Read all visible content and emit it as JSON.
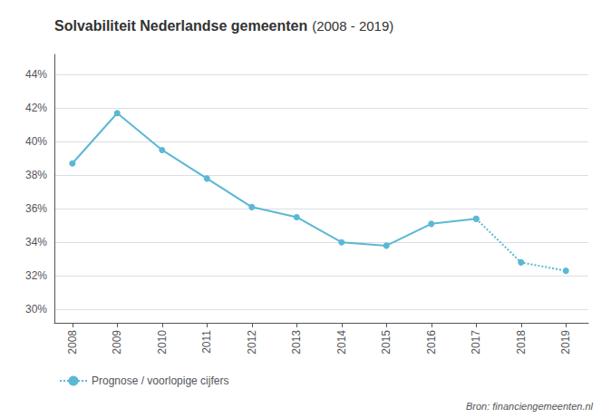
{
  "chart_data": {
    "type": "line",
    "title": "Solvabiliteit Nederlandse gemeenten",
    "subtitle": "(2008 - 2019)",
    "x": [
      2008,
      2009,
      2010,
      2011,
      2012,
      2013,
      2014,
      2015,
      2016,
      2017,
      2018,
      2019
    ],
    "series": [
      {
        "color": "#5BB8D4",
        "line_style": "solid",
        "marker": "circle",
        "values": [
          38.7,
          41.7,
          39.5,
          37.8,
          36.1,
          35.5,
          34.0,
          33.8,
          35.1,
          35.4,
          null,
          null
        ]
      },
      {
        "name": "Prognose / voorlopige cijfers",
        "color": "#5BB8D4",
        "line_style": "dotted",
        "marker": "circle",
        "values": [
          null,
          null,
          null,
          null,
          null,
          null,
          null,
          null,
          null,
          35.4,
          32.8,
          32.3
        ]
      }
    ],
    "xlim": [
      2007.6,
      2019.5
    ],
    "xticks": [
      2008,
      2009,
      2010,
      2011,
      2012,
      2013,
      2014,
      2015,
      2016,
      2017,
      2018,
      2019
    ],
    "ylim": [
      29.2,
      45.2
    ],
    "yticks": [
      {
        "value": 30,
        "label": "30%"
      },
      {
        "value": 32,
        "label": "32%"
      },
      {
        "value": 34,
        "label": "34%"
      },
      {
        "value": 36,
        "label": "36%"
      },
      {
        "value": 38,
        "label": "38%"
      },
      {
        "value": 40,
        "label": "40%"
      },
      {
        "value": 42,
        "label": "42%"
      },
      {
        "value": 44,
        "label": "44%"
      }
    ],
    "grid": true,
    "legend": "lower left",
    "annotations": [
      "Bron: financiengemeenten.nl"
    ]
  }
}
